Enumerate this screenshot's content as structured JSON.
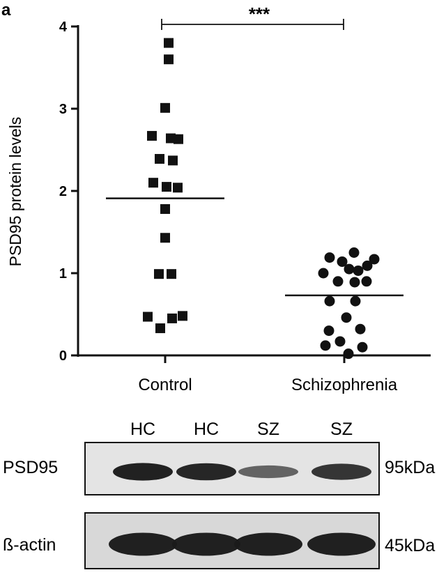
{
  "panel_label": "a",
  "chart_data": {
    "type": "scatter",
    "ylabel": "PSD95 protein levels",
    "xlabel": "",
    "categories": [
      "Control",
      "Schizophrenia"
    ],
    "ylim": [
      0,
      4
    ],
    "yticks": [
      0,
      1,
      2,
      3,
      4
    ],
    "grid": false,
    "series": [
      {
        "category": "Control",
        "marker": "square",
        "mean": 1.91,
        "points": [
          {
            "offset": 0.05,
            "y": 3.8
          },
          {
            "offset": 0.05,
            "y": 3.6
          },
          {
            "offset": 0.0,
            "y": 3.01
          },
          {
            "offset": -0.19,
            "y": 2.67
          },
          {
            "offset": 0.08,
            "y": 2.64
          },
          {
            "offset": 0.19,
            "y": 2.63
          },
          {
            "offset": -0.08,
            "y": 2.39
          },
          {
            "offset": 0.11,
            "y": 2.37
          },
          {
            "offset": -0.17,
            "y": 2.1
          },
          {
            "offset": 0.02,
            "y": 2.05
          },
          {
            "offset": 0.18,
            "y": 2.04
          },
          {
            "offset": 0.0,
            "y": 1.78
          },
          {
            "offset": 0.0,
            "y": 1.43
          },
          {
            "offset": -0.09,
            "y": 0.99
          },
          {
            "offset": 0.09,
            "y": 0.99
          },
          {
            "offset": -0.25,
            "y": 0.47
          },
          {
            "offset": 0.25,
            "y": 0.48
          },
          {
            "offset": 0.1,
            "y": 0.45
          },
          {
            "offset": -0.07,
            "y": 0.33
          }
        ]
      },
      {
        "category": "Schizophrenia",
        "marker": "circle",
        "mean": 0.73,
        "points": [
          {
            "offset": -0.21,
            "y": 1.19
          },
          {
            "offset": 0.14,
            "y": 1.25
          },
          {
            "offset": 0.43,
            "y": 1.17
          },
          {
            "offset": -0.03,
            "y": 1.14
          },
          {
            "offset": 0.33,
            "y": 1.09
          },
          {
            "offset": 0.07,
            "y": 1.05
          },
          {
            "offset": 0.2,
            "y": 1.03
          },
          {
            "offset": -0.3,
            "y": 1.0
          },
          {
            "offset": -0.09,
            "y": 0.9
          },
          {
            "offset": 0.15,
            "y": 0.89
          },
          {
            "offset": 0.32,
            "y": 0.9
          },
          {
            "offset": -0.21,
            "y": 0.66
          },
          {
            "offset": 0.16,
            "y": 0.66
          },
          {
            "offset": 0.03,
            "y": 0.46
          },
          {
            "offset": -0.22,
            "y": 0.3
          },
          {
            "offset": 0.23,
            "y": 0.32
          },
          {
            "offset": -0.06,
            "y": 0.17
          },
          {
            "offset": -0.27,
            "y": 0.12
          },
          {
            "offset": 0.26,
            "y": 0.1
          },
          {
            "offset": 0.06,
            "y": 0.02
          }
        ]
      }
    ],
    "significance": "***"
  },
  "western_blot": {
    "lane_labels": [
      "HC",
      "HC",
      "SZ",
      "SZ"
    ],
    "rows": [
      {
        "label": "PSD95",
        "size": "95kDa",
        "band_intensity": [
          0.95,
          0.9,
          0.45,
          0.8
        ]
      },
      {
        "label": "ß-actin",
        "size": "45kDa",
        "band_intensity": [
          0.95,
          0.95,
          0.95,
          0.95
        ]
      }
    ]
  },
  "colors": {
    "ink": "#111111",
    "band": "#1a1a1a",
    "membrane": "#e6e6e6"
  }
}
